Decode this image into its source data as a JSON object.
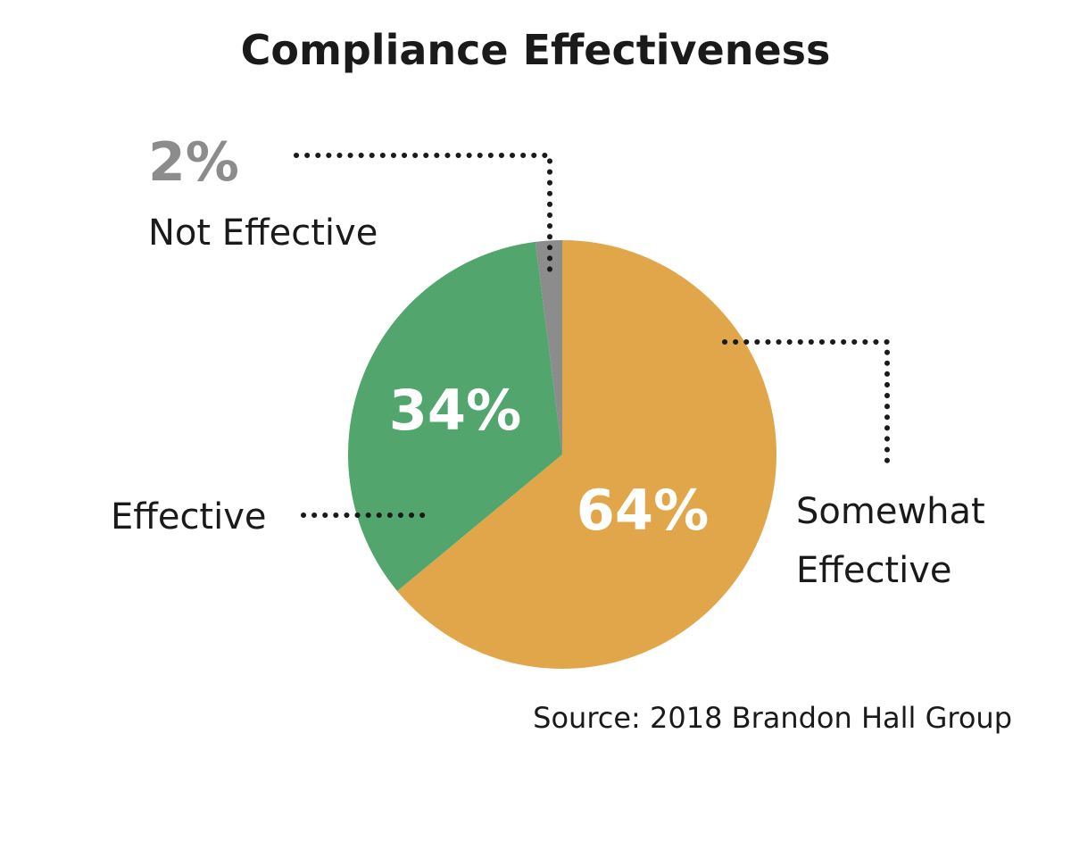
{
  "chart_data": {
    "type": "pie",
    "title": "Compliance Effectiveness",
    "slices": [
      {
        "label": "Somewhat Effective",
        "value": 64,
        "display": "64%",
        "color": "#E1A64A"
      },
      {
        "label": "Effective",
        "value": 34,
        "display": "34%",
        "color": "#52A66D"
      },
      {
        "label": "Not Effective",
        "value": 2,
        "display": "2%",
        "color": "#8C8C8C"
      }
    ],
    "labels": {
      "somewhat_line1": "Somewhat",
      "somewhat_line2": "Effective",
      "effective": "Effective",
      "not_effective": "Not Effective"
    },
    "source": "Source: 2018 Brandon Hall Group",
    "start_angle_deg": 0,
    "direction": "clockwise"
  },
  "colors": {
    "background": "#FFFFFF",
    "text": "#1A1A1A",
    "percent_outside": "#8C8C8C"
  }
}
